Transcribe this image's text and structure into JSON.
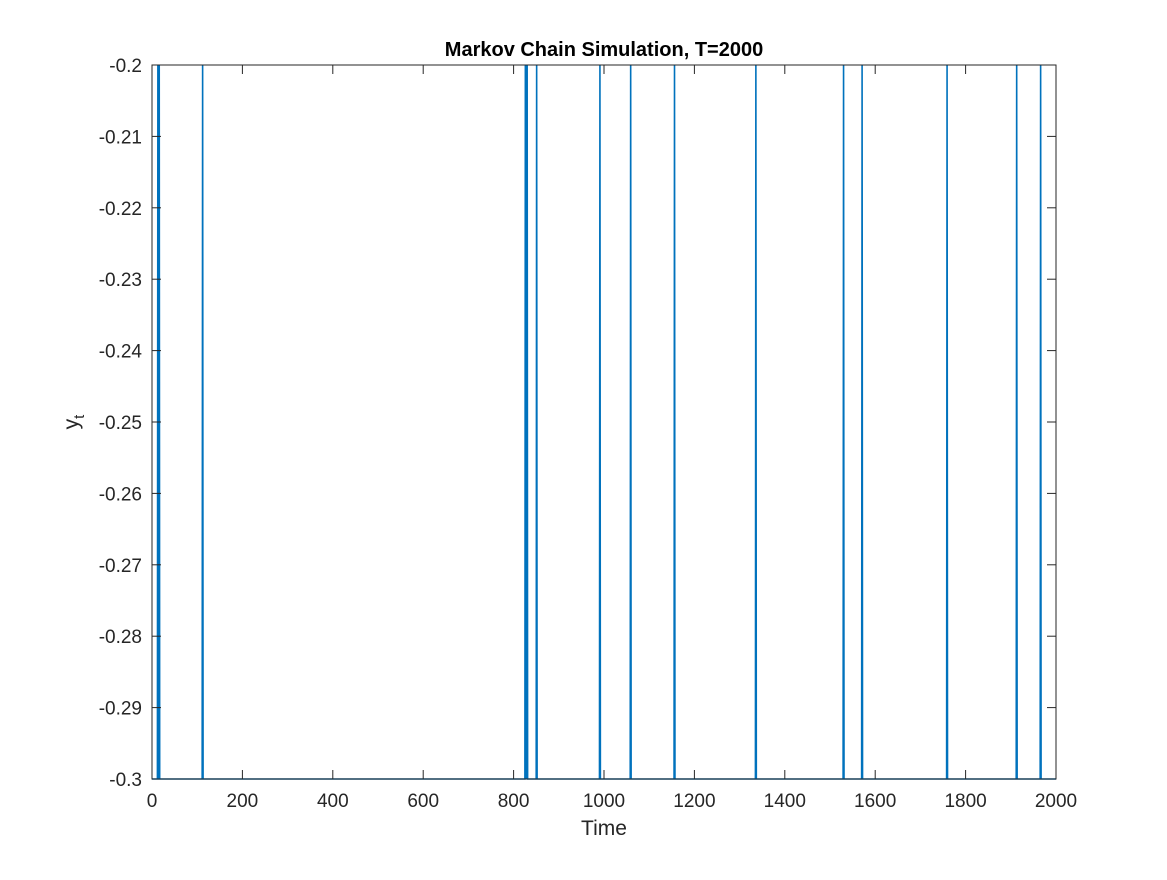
{
  "chart_data": {
    "type": "line",
    "title": "Markov Chain Simulation, T=2000",
    "xlabel": "Time",
    "ylabel_main": "y",
    "ylabel_subscript": "t",
    "xlim": [
      0,
      2000
    ],
    "ylim": [
      -0.3,
      -0.2
    ],
    "x_ticks": [
      0,
      200,
      400,
      600,
      800,
      1000,
      1200,
      1400,
      1600,
      1800,
      2000
    ],
    "x_tick_labels": [
      "0",
      "200",
      "400",
      "600",
      "800",
      "1000",
      "1200",
      "1400",
      "1600",
      "1800",
      "2000"
    ],
    "y_ticks": [
      -0.3,
      -0.29,
      -0.28,
      -0.27,
      -0.26,
      -0.25,
      -0.24,
      -0.23,
      -0.22,
      -0.21,
      -0.2
    ],
    "y_tick_labels": [
      "-0.3",
      "-0.29",
      "-0.28",
      "-0.27",
      "-0.26",
      "-0.25",
      "-0.24",
      "-0.23",
      "-0.22",
      "-0.21",
      "-0.2"
    ],
    "grid": false,
    "line_color": "#0072BD",
    "baseline_value": -0.3,
    "high_value": -0.2,
    "high_state_times": [
      13,
      16,
      112,
      826,
      828,
      830,
      851,
      991,
      1059,
      1156,
      1336,
      1530,
      1571,
      1759,
      1913,
      1966
    ]
  }
}
